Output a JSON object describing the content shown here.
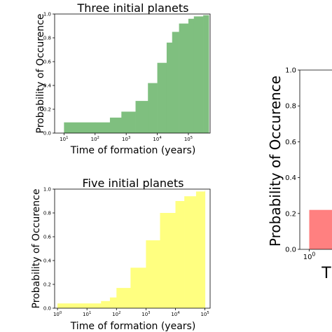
{
  "chart_data": [
    {
      "type": "area",
      "title": "Three initial planets",
      "xlabel": "Time of formation (years)",
      "ylabel": "Probability of Occurence",
      "xscale": "log",
      "xlim": [
        5,
        500000
      ],
      "ylim": [
        0,
        1.0
      ],
      "xticks": [
        {
          "v": 10,
          "e": "1"
        },
        {
          "v": 100,
          "e": "2"
        },
        {
          "v": 1000,
          "e": "3"
        },
        {
          "v": 10000,
          "e": "4"
        },
        {
          "v": 100000,
          "e": "5"
        }
      ],
      "yticks": [
        "0.0",
        "0.2",
        "0.4",
        "0.6",
        "0.8",
        "1.0"
      ],
      "color": "#7fbf7f",
      "x": [
        10,
        100,
        300,
        700,
        2000,
        5000,
        10000,
        20000,
        30000,
        50000,
        100000,
        150000,
        300000,
        450000
      ],
      "values": [
        0.09,
        0.09,
        0.13,
        0.18,
        0.27,
        0.42,
        0.59,
        0.76,
        0.85,
        0.92,
        0.96,
        0.98,
        0.99,
        0.99
      ]
    },
    {
      "type": "area",
      "title": "Five initial planets",
      "xlabel": "Time of formation (years)",
      "ylabel": "Probability of Occurence",
      "xscale": "log",
      "xlim": [
        0.8,
        150000
      ],
      "ylim": [
        0,
        1.0
      ],
      "xticks": [
        {
          "v": 1,
          "e": "0"
        },
        {
          "v": 10,
          "e": "1"
        },
        {
          "v": 100,
          "e": "2"
        },
        {
          "v": 1000,
          "e": "3"
        },
        {
          "v": 10000,
          "e": "4"
        },
        {
          "v": 100000,
          "e": "5"
        }
      ],
      "yticks": [
        "0.0",
        "0.2",
        "0.4",
        "0.6",
        "0.8",
        "1.0"
      ],
      "color": "#ffff80",
      "x": [
        1,
        10,
        30,
        60,
        100,
        300,
        1000,
        3000,
        10000,
        20000,
        50000,
        100000
      ],
      "values": [
        0.04,
        0.04,
        0.06,
        0.09,
        0.17,
        0.34,
        0.57,
        0.8,
        0.9,
        0.94,
        0.98,
        0.99
      ]
    },
    {
      "type": "bar",
      "xlabel": "T",
      "ylabel": "Probability of Occurence",
      "xscale": "log",
      "xlim": [
        0.8,
        100
      ],
      "ylim": [
        0,
        1.0
      ],
      "xticks": [
        {
          "v": 1,
          "e": "0"
        }
      ],
      "yticks": [
        "0.0",
        "0.2",
        "0.4",
        "0.6",
        "0.8",
        "1.0"
      ],
      "color": "#ff8080",
      "x": [
        1
      ],
      "values": [
        0.22
      ]
    }
  ]
}
